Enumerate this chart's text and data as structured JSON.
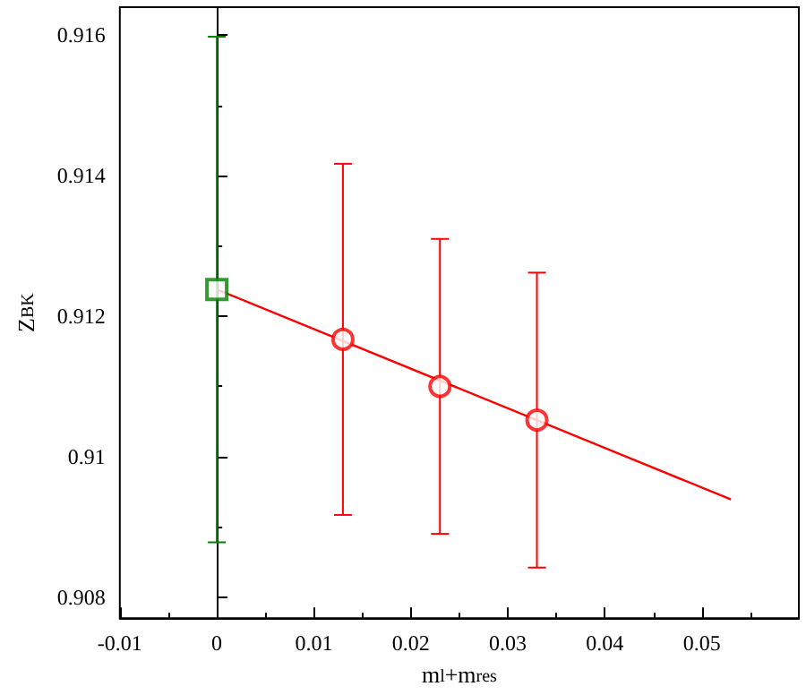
{
  "chart_data": {
    "type": "scatter",
    "xlabel": "m$_{l}$+m$_{res}$",
    "ylabel": "Z$_{BK}$",
    "xlim": [
      -0.01,
      0.06
    ],
    "xticks": [
      -0.01,
      0,
      0.01,
      0.02,
      0.03,
      0.04,
      0.05
    ],
    "ylim": [
      0.9077,
      0.9164
    ],
    "yticks": [
      0.908,
      0.91,
      0.912,
      0.914,
      0.916
    ],
    "grid": false,
    "series": [
      {
        "type": "line",
        "color": "#ff0000",
        "x": [
          0,
          0.053
        ],
        "values": [
          0.91238,
          0.90939
        ],
        "marker": "none"
      },
      {
        "color": "#ff0000",
        "x": [
          0.013,
          0.023,
          0.033
        ],
        "values": [
          0.91167,
          0.911,
          0.91052
        ],
        "errors": [
          0.0025,
          0.0021,
          0.0021
        ],
        "marker": "circle"
      },
      {
        "color": "#008000",
        "x": [
          0
        ],
        "values": [
          0.91238
        ],
        "errors": [
          0.0036
        ],
        "marker": "square"
      }
    ]
  }
}
